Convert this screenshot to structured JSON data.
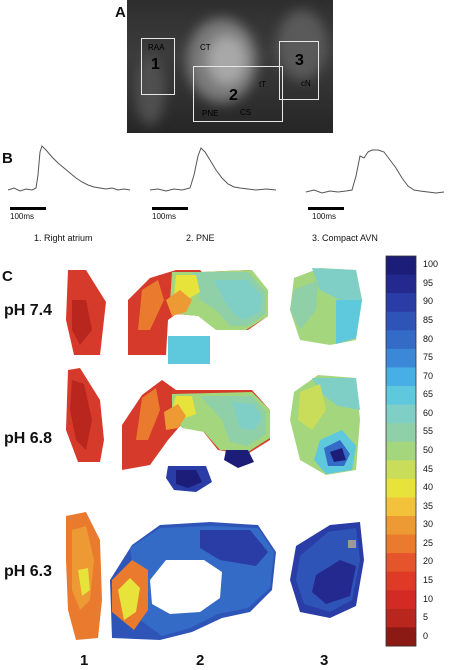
{
  "panels": {
    "a": "A",
    "b": "B",
    "c": "C"
  },
  "photo": {
    "labels": {
      "raa": "RAA",
      "ct": "CT",
      "tt": "tT",
      "cn": "cN",
      "pne": "PNE",
      "cs": "CS"
    },
    "region_numbers": [
      "1",
      "2",
      "3"
    ]
  },
  "traces": {
    "scale_bar_label": "100ms",
    "captions": [
      "1. Right atrium",
      "2. PNE",
      "3. Compact AVN"
    ]
  },
  "maps": {
    "rows": [
      "pH 7.4",
      "pH 6.8",
      "pH 6.3"
    ],
    "columns": [
      "1",
      "2",
      "3"
    ]
  },
  "colorbar": {
    "ticks": [
      "100",
      "95",
      "90",
      "85",
      "80",
      "75",
      "70",
      "65",
      "60",
      "55",
      "50",
      "45",
      "40",
      "35",
      "30",
      "25",
      "20",
      "15",
      "10",
      "5",
      "0"
    ],
    "colors": [
      "#1c1d78",
      "#23298e",
      "#2a3ca6",
      "#2f54b8",
      "#336bc6",
      "#3c88d8",
      "#48aee6",
      "#5ec8dd",
      "#7fcfc7",
      "#8fd0a8",
      "#a4d67e",
      "#c9dd5a",
      "#e7e33a",
      "#f2c23a",
      "#ee9a34",
      "#e97a2e",
      "#e4552b",
      "#df3a28",
      "#d42a24",
      "#b8261e",
      "#8c1a14"
    ]
  },
  "chart_data": {
    "type": "heatmap",
    "rows": [
      "pH 7.4",
      "pH 6.8",
      "pH 6.3"
    ],
    "columns": [
      "1",
      "2",
      "3"
    ],
    "scale_range": [
      0,
      100
    ],
    "scale_ticks": [
      0,
      5,
      10,
      15,
      20,
      25,
      30,
      35,
      40,
      45,
      50,
      55,
      60,
      65,
      70,
      75,
      80,
      85,
      90,
      95,
      100
    ]
  }
}
